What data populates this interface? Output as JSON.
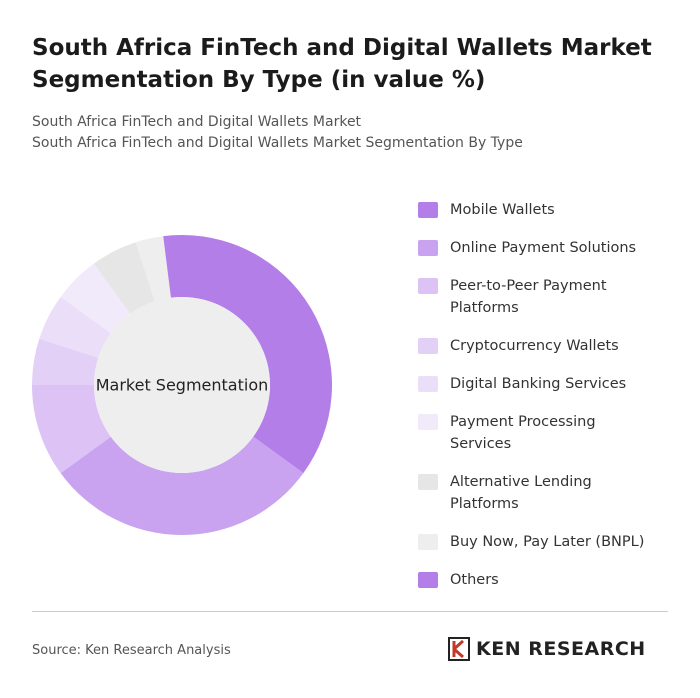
{
  "chart_data": {
    "type": "donut",
    "title": "South Africa FinTech and Digital Wallets Market Segmentation By Type (in value %)",
    "subtitle": "South Africa FinTech and Digital Wallets Market",
    "subtitle2": "South Africa FinTech and Digital Wallets Market Segmentation By Type",
    "center_label": "Market Segmentation",
    "categories": [
      "Mobile Wallets",
      "Online Payment Solutions",
      "Peer-to-Peer Payment Platforms",
      "Cryptocurrency Wallets",
      "Digital Banking Services",
      "Payment Processing Services",
      "Alternative Lending Platforms",
      "Buy Now, Pay Later (BNPL)",
      "Others"
    ],
    "values": [
      35,
      30,
      10,
      5,
      5,
      5,
      5,
      3,
      2
    ],
    "colors": [
      "#b47ee8",
      "#c9a3ef",
      "#dcc2f5",
      "#e3d0f7",
      "#ebdef9",
      "#f1eafb",
      "#e6e6e6",
      "#eeeeee",
      "#b47ee8"
    ]
  },
  "source": "Source: Ken Research Analysis",
  "brand": "KEN RESEARCH"
}
